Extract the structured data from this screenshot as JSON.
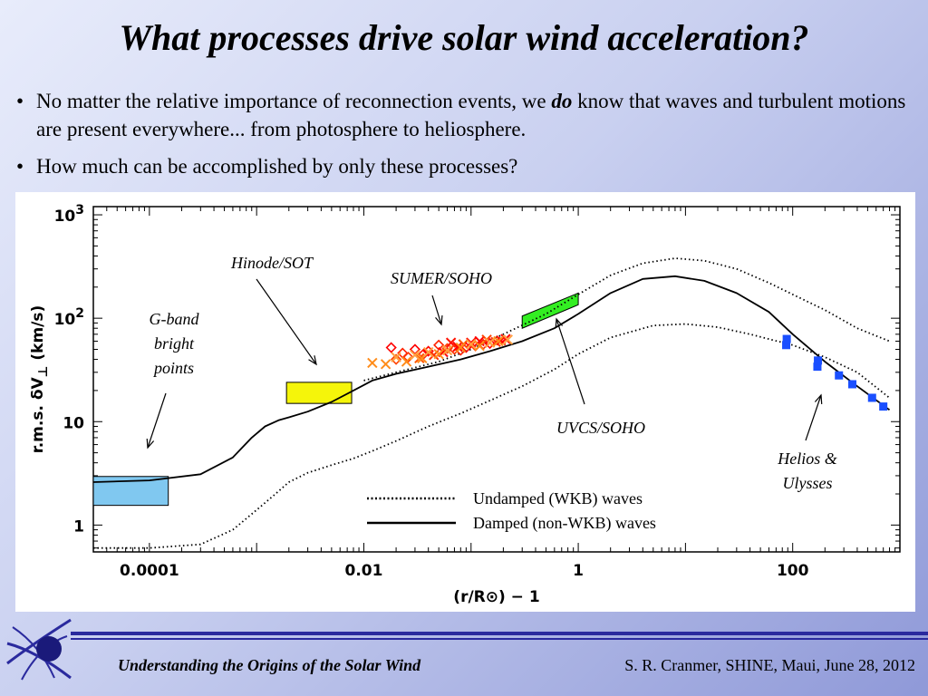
{
  "slide": {
    "title": "What processes drive solar wind acceleration?",
    "bullets": [
      {
        "pre": "No matter the relative importance of reconnection events, we ",
        "em": "do",
        "post": " know that waves and turbulent motions are present everywhere... from photosphere to heliosphere."
      },
      {
        "pre": "How much can be accomplished by only these processes?",
        "em": "",
        "post": ""
      }
    ],
    "bullet_glyph": "•"
  },
  "footer": {
    "left": "Understanding the Origins of the Solar Wind",
    "right": "S. R. Cranmer, SHINE, Maui, June 28, 2012",
    "line_color": "#2a2a9e",
    "logo_icon": "solar-wind-logo-icon"
  },
  "chart_data": {
    "type": "line",
    "xscale": "log",
    "yscale": "log",
    "xlim": [
      3e-05,
      1000
    ],
    "ylim": [
      0.55,
      1200
    ],
    "xlabel": "(r/R⊙) − 1",
    "ylabel_left": "r.m.s.",
    "ylabel_delta": "δV",
    "ylabel_sub": "⊥",
    "ylabel_right": "(km/s)",
    "xticks": [
      {
        "v": 0.0001,
        "label": "0.0001"
      },
      {
        "v": 0.01,
        "label": "0.01"
      },
      {
        "v": 1,
        "label": "1"
      },
      {
        "v": 100,
        "label": "100"
      }
    ],
    "yticks": [
      {
        "v": 1,
        "label": "1",
        "sup": ""
      },
      {
        "v": 10,
        "label": "10",
        "sup": ""
      },
      {
        "v": 100,
        "label": "10",
        "sup": "2"
      },
      {
        "v": 1000,
        "label": "10",
        "sup": "3"
      }
    ],
    "series": [
      {
        "name": "Undamped (WKB) waves",
        "style": "dotted",
        "color": "#000000",
        "x": [
          3e-05,
          0.0001,
          0.0003,
          0.0006,
          0.001,
          0.0015,
          0.002,
          0.003,
          0.005,
          0.008,
          0.012,
          0.02,
          0.04,
          0.08,
          0.15,
          0.3,
          0.6,
          1,
          2,
          5,
          10,
          20,
          40,
          100,
          200,
          400,
          800
        ],
        "y": [
          0.6,
          0.6,
          0.65,
          0.9,
          1.4,
          2.0,
          2.6,
          3.2,
          3.8,
          4.4,
          5.2,
          6.5,
          9,
          12,
          16,
          22,
          32,
          45,
          65,
          85,
          88,
          82,
          70,
          55,
          42,
          30,
          17
        ]
      },
      {
        "name": "Undamped (WKB) waves",
        "style": "dotted",
        "color": "#000000",
        "x": [
          0.01,
          0.02,
          0.05,
          0.1,
          0.2,
          0.5,
          1,
          2,
          4,
          8,
          15,
          30,
          60,
          100,
          200,
          400,
          800
        ],
        "y": [
          25,
          30,
          38,
          50,
          70,
          110,
          170,
          260,
          340,
          380,
          360,
          300,
          220,
          170,
          120,
          80,
          60
        ]
      },
      {
        "name": "Damped (non-WKB) waves",
        "style": "solid",
        "color": "#000000",
        "x": [
          3e-05,
          0.0001,
          0.0003,
          0.0006,
          0.0009,
          0.0012,
          0.0016,
          0.002,
          0.003,
          0.005,
          0.008,
          0.012,
          0.02,
          0.04,
          0.08,
          0.15,
          0.3,
          0.6,
          1,
          2,
          4,
          8,
          15,
          30,
          60,
          100,
          200,
          400,
          800
        ],
        "y": [
          2.6,
          2.7,
          3.1,
          4.5,
          7,
          9,
          10.3,
          11,
          12.5,
          15.5,
          20,
          25,
          29,
          34,
          40,
          48,
          60,
          80,
          110,
          175,
          240,
          255,
          230,
          175,
          115,
          70,
          38,
          22,
          13
        ]
      }
    ],
    "legend": [
      {
        "label": "Undamped (WKB) waves",
        "style": "dotted"
      },
      {
        "label": "Damped (non-WKB) waves",
        "style": "solid"
      }
    ],
    "observations": [
      {
        "label": "G-band bright points",
        "lines": [
          "G-band",
          "bright",
          "points"
        ],
        "kind": "box",
        "x": [
          3e-05,
          0.00015
        ],
        "y": [
          1.55,
          2.95
        ],
        "color": "#80c8f0"
      },
      {
        "label": "Hinode/SOT",
        "lines": [
          "Hinode/SOT"
        ],
        "kind": "box",
        "x": [
          0.0019,
          0.0077
        ],
        "y": [
          15,
          24
        ],
        "color": "#f5f50a"
      },
      {
        "label": "SUMER/SOHO",
        "lines": [
          "SUMER/SOHO"
        ],
        "kind": "scatter",
        "x": [
          0.018,
          0.02,
          0.023,
          0.026,
          0.03,
          0.033,
          0.036,
          0.04,
          0.045,
          0.05,
          0.055,
          0.06,
          0.065,
          0.07,
          0.075,
          0.08,
          0.085,
          0.09,
          0.1,
          0.11,
          0.12,
          0.13,
          0.14,
          0.15,
          0.17,
          0.19,
          0.21
        ],
        "y": [
          52,
          40,
          46,
          42,
          50,
          41,
          45,
          48,
          44,
          55,
          47,
          51,
          58,
          50,
          53,
          49,
          56,
          52,
          58,
          54,
          60,
          56,
          62,
          57,
          59,
          61,
          63
        ],
        "colors": [
          "#ff0000",
          "#ff4400",
          "#ff2200",
          "#ff3300",
          "#ff0000",
          "#ff5500",
          "#ff1100",
          "#ff0000",
          "#ff3300",
          "#ff2200",
          "#ff0000",
          "#ff4400",
          "#ff1100",
          "#ff3300",
          "#ff0000",
          "#ff2200",
          "#ff5500",
          "#ff0000",
          "#ff1100",
          "#ff3300",
          "#ff0000",
          "#ff2200",
          "#ff4400",
          "#ff0000",
          "#ff3300",
          "#ff1100",
          "#ff0000"
        ],
        "symbols": [
          "diamond",
          "diamond",
          "diamond",
          "diamond",
          "diamond",
          "cross",
          "diamond",
          "diamond",
          "cross",
          "diamond",
          "cross",
          "diamond",
          "cross",
          "diamond",
          "cross",
          "diamond",
          "cross",
          "diamond",
          "cross",
          "diamond",
          "cross",
          "diamond",
          "cross",
          "diamond",
          "cross",
          "cross",
          "cross"
        ]
      },
      {
        "label": "SUMER/SOHO",
        "lines": [],
        "kind": "scatter",
        "x": [
          0.012,
          0.016,
          0.02,
          0.025,
          0.03,
          0.035,
          0.04,
          0.05,
          0.06,
          0.08,
          0.1,
          0.12,
          0.15,
          0.18,
          0.22
        ],
        "y": [
          37,
          36,
          42,
          38,
          44,
          41,
          47,
          45,
          49,
          52,
          56,
          54,
          58,
          60,
          62
        ],
        "colors": [
          "#ff8c1a",
          "#ff8c1a",
          "#ffa040",
          "#ff8c1a",
          "#ffa040",
          "#ff8c1a",
          "#ffa040",
          "#ff8c1a",
          "#ffa040",
          "#ff8c1a",
          "#ffa040",
          "#ff8c1a",
          "#ffa040",
          "#ff8c1a",
          "#ffa040"
        ],
        "symbols": [
          "cross",
          "cross",
          "cross",
          "cross",
          "cross",
          "cross",
          "cross",
          "cross",
          "cross",
          "cross",
          "cross",
          "cross",
          "cross",
          "cross",
          "cross"
        ]
      },
      {
        "label": "UVCS/SOHO",
        "lines": [
          "UVCS/SOHO"
        ],
        "kind": "band",
        "x": [
          0.3,
          1.0
        ],
        "y_low": [
          80,
          135
        ],
        "y_high": [
          105,
          175
        ],
        "color": "#33ee22"
      },
      {
        "label": "Helios & Ulysses",
        "lines": [
          "Helios &",
          "Ulysses"
        ],
        "kind": "scatter",
        "x": [
          87,
          88,
          170,
          172,
          270,
          360,
          550,
          700
        ],
        "y": [
          55,
          63,
          34,
          39,
          28,
          23,
          17,
          14
        ],
        "colors": [
          "#1a4fff",
          "#1a4fff",
          "#1a4fff",
          "#1a4fff",
          "#1a4fff",
          "#1a4fff",
          "#1a4fff",
          "#1a4fff"
        ],
        "symbols": [
          "square",
          "square",
          "square",
          "square",
          "square",
          "square",
          "square",
          "square"
        ]
      }
    ],
    "grid": false,
    "legend_position": "bottom-center"
  }
}
